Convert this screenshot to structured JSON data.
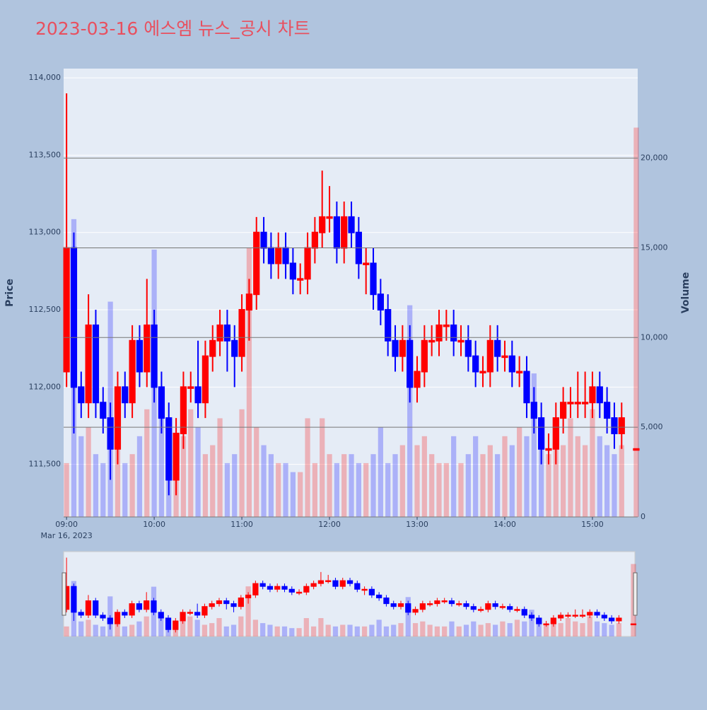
{
  "chart_data": {
    "type": "candlestick",
    "title": "2023-03-16 에스엠 뉴스_공시 차트",
    "y_label": "Price",
    "y2_label": "Volume",
    "increasing_color": "#ff0000",
    "decreasing_color": "#0000ff",
    "x": [
      "2023-03-16 09:00",
      "2023-03-16 09:05",
      "2023-03-16 09:10",
      "2023-03-16 09:15",
      "2023-03-16 09:20",
      "2023-03-16 09:25",
      "2023-03-16 09:30",
      "2023-03-16 09:35",
      "2023-03-16 09:40",
      "2023-03-16 09:45",
      "2023-03-16 09:50",
      "2023-03-16 09:55",
      "2023-03-16 10:00",
      "2023-03-16 10:05",
      "2023-03-16 10:10",
      "2023-03-16 10:15",
      "2023-03-16 10:20",
      "2023-03-16 10:25",
      "2023-03-16 10:30",
      "2023-03-16 10:35",
      "2023-03-16 10:40",
      "2023-03-16 10:45",
      "2023-03-16 10:50",
      "2023-03-16 10:55",
      "2023-03-16 11:00",
      "2023-03-16 11:05",
      "2023-03-16 11:10",
      "2023-03-16 11:15",
      "2023-03-16 11:20",
      "2023-03-16 11:25",
      "2023-03-16 11:30",
      "2023-03-16 11:35",
      "2023-03-16 11:40",
      "2023-03-16 11:45",
      "2023-03-16 11:50",
      "2023-03-16 11:55",
      "2023-03-16 12:00",
      "2023-03-16 12:05",
      "2023-03-16 12:10",
      "2023-03-16 12:15",
      "2023-03-16 12:20",
      "2023-03-16 12:25",
      "2023-03-16 12:30",
      "2023-03-16 12:35",
      "2023-03-16 12:40",
      "2023-03-16 12:45",
      "2023-03-16 12:50",
      "2023-03-16 12:55",
      "2023-03-16 13:00",
      "2023-03-16 13:05",
      "2023-03-16 13:10",
      "2023-03-16 13:15",
      "2023-03-16 13:20",
      "2023-03-16 13:25",
      "2023-03-16 13:30",
      "2023-03-16 13:35",
      "2023-03-16 13:40",
      "2023-03-16 13:45",
      "2023-03-16 13:50",
      "2023-03-16 13:55",
      "2023-03-16 14:00",
      "2023-03-16 14:05",
      "2023-03-16 14:10",
      "2023-03-16 14:15",
      "2023-03-16 14:20",
      "2023-03-16 14:25",
      "2023-03-16 14:30",
      "2023-03-16 14:35",
      "2023-03-16 14:40",
      "2023-03-16 14:45",
      "2023-03-16 14:50",
      "2023-03-16 14:55",
      "2023-03-16 15:00",
      "2023-03-16 15:05",
      "2023-03-16 15:10",
      "2023-03-16 15:15",
      "2023-03-16 15:20",
      "2023-03-16 15:30"
    ],
    "open": [
      112100,
      112900,
      112000,
      111900,
      112400,
      111900,
      111800,
      111600,
      112000,
      111900,
      112300,
      112100,
      112400,
      112000,
      111800,
      111400,
      111700,
      112000,
      112000,
      111900,
      112200,
      112300,
      112400,
      112300,
      112200,
      112500,
      112600,
      113000,
      112900,
      112800,
      112900,
      112800,
      112700,
      112700,
      112900,
      113000,
      113100,
      113100,
      112900,
      113100,
      113000,
      112800,
      112800,
      112600,
      112500,
      112300,
      112200,
      112300,
      112000,
      112100,
      112300,
      112300,
      112400,
      112400,
      112300,
      112300,
      112200,
      112100,
      112100,
      112300,
      112200,
      112200,
      112100,
      112100,
      111900,
      111800,
      111600,
      111600,
      111800,
      111900,
      111900,
      111900,
      111900,
      112000,
      111900,
      111800,
      111700,
      111600
    ],
    "high": [
      113900,
      113000,
      112100,
      112600,
      112500,
      112000,
      111900,
      112100,
      112100,
      112400,
      112400,
      112700,
      112500,
      112100,
      111900,
      111800,
      112100,
      112100,
      112300,
      112300,
      112400,
      112500,
      112500,
      112400,
      112600,
      112700,
      113100,
      113100,
      113000,
      113000,
      113000,
      112900,
      112800,
      113000,
      113100,
      113400,
      113300,
      113200,
      113200,
      113200,
      113100,
      112900,
      112900,
      112700,
      112600,
      112400,
      112400,
      112400,
      112200,
      112400,
      112400,
      112500,
      112500,
      112500,
      112400,
      112400,
      112300,
      112200,
      112400,
      112400,
      112300,
      112300,
      112200,
      112200,
      112000,
      111900,
      111700,
      111900,
      112000,
      112000,
      112100,
      112100,
      112100,
      112100,
      112000,
      111900,
      111900,
      111600
    ],
    "low": [
      112000,
      111700,
      111800,
      111800,
      111800,
      111700,
      111400,
      111500,
      111800,
      111800,
      112000,
      112000,
      111900,
      111700,
      111300,
      111300,
      111600,
      111900,
      111800,
      111800,
      112100,
      112200,
      112100,
      112000,
      112100,
      112300,
      112500,
      112800,
      112700,
      112700,
      112700,
      112600,
      112600,
      112600,
      112800,
      112900,
      113000,
      112800,
      112800,
      112900,
      112700,
      112600,
      112500,
      112400,
      112200,
      112100,
      112100,
      111900,
      111900,
      112000,
      112200,
      112200,
      112300,
      112200,
      112200,
      112100,
      112000,
      112000,
      112000,
      112100,
      112100,
      112000,
      112000,
      111800,
      111700,
      111500,
      111500,
      111500,
      111700,
      111800,
      111800,
      111800,
      111800,
      111800,
      111700,
      111600,
      111600,
      111600
    ],
    "close": [
      112900,
      112000,
      111900,
      112400,
      111900,
      111800,
      111600,
      112000,
      111900,
      112300,
      112100,
      112400,
      112000,
      111800,
      111400,
      111700,
      112000,
      112000,
      111900,
      112200,
      112300,
      112400,
      112300,
      112200,
      112500,
      112600,
      113000,
      112900,
      112800,
      112900,
      112800,
      112700,
      112700,
      112900,
      113000,
      113100,
      113100,
      112900,
      113100,
      113000,
      112800,
      112800,
      112600,
      112500,
      112300,
      112200,
      112300,
      112000,
      112100,
      112300,
      112300,
      112400,
      112400,
      112300,
      112300,
      112200,
      112100,
      112100,
      112300,
      112200,
      112200,
      112100,
      112100,
      111900,
      111800,
      111600,
      111600,
      111800,
      111900,
      111900,
      111900,
      111900,
      112000,
      111900,
      111800,
      111700,
      111800,
      111600
    ],
    "volume": [
      3000,
      16600,
      4500,
      5000,
      3500,
      3000,
      12000,
      4000,
      3000,
      3500,
      4500,
      6000,
      14900,
      6000,
      3500,
      3000,
      4500,
      6000,
      5000,
      3500,
      4000,
      5500,
      3000,
      3500,
      6000,
      15000,
      5000,
      4000,
      3500,
      3000,
      3000,
      2500,
      2500,
      5500,
      3000,
      5500,
      3500,
      3000,
      3500,
      3500,
      3000,
      3000,
      3500,
      5000,
      3000,
      3500,
      4000,
      11800,
      4000,
      4500,
      3500,
      3000,
      3000,
      4500,
      3000,
      3500,
      4500,
      3500,
      4000,
      3500,
      4500,
      4000,
      5000,
      4500,
      8000,
      5500,
      3500,
      4500,
      4000,
      5500,
      4500,
      4000,
      6000,
      4500,
      4000,
      3500,
      4000,
      21700
    ],
    "xlim": [
      "2023-03-16 08:58",
      "2023-03-16 15:31"
    ],
    "xticks": [
      {
        "value": "2023-03-16 09:00",
        "label": "09:00",
        "sublabel": "Mar 16, 2023"
      },
      {
        "value": "2023-03-16 10:00",
        "label": "10:00"
      },
      {
        "value": "2023-03-16 11:00",
        "label": "11:00"
      },
      {
        "value": "2023-03-16 12:00",
        "label": "12:00"
      },
      {
        "value": "2023-03-16 13:00",
        "label": "13:00"
      },
      {
        "value": "2023-03-16 14:00",
        "label": "14:00"
      },
      {
        "value": "2023-03-16 15:00",
        "label": "15:00"
      }
    ],
    "ylim": [
      111160,
      114060
    ],
    "yticks": [
      {
        "value": 111500,
        "label": "111,500"
      },
      {
        "value": 112000,
        "label": "112,000"
      },
      {
        "value": 112500,
        "label": "112,500"
      },
      {
        "value": 113000,
        "label": "113,000"
      },
      {
        "value": 113500,
        "label": "113,500"
      },
      {
        "value": 114000,
        "label": "114,000"
      }
    ],
    "y2lim": [
      0,
      24990
    ],
    "y2ticks": [
      0,
      {
        "value": 5000,
        "label": "5,000"
      },
      {
        "value": 10000,
        "label": "10,000"
      },
      {
        "value": 15000,
        "label": "15,000"
      },
      {
        "value": 20000,
        "label": "20,000"
      }
    ],
    "grid": true,
    "rangeslider": true
  }
}
